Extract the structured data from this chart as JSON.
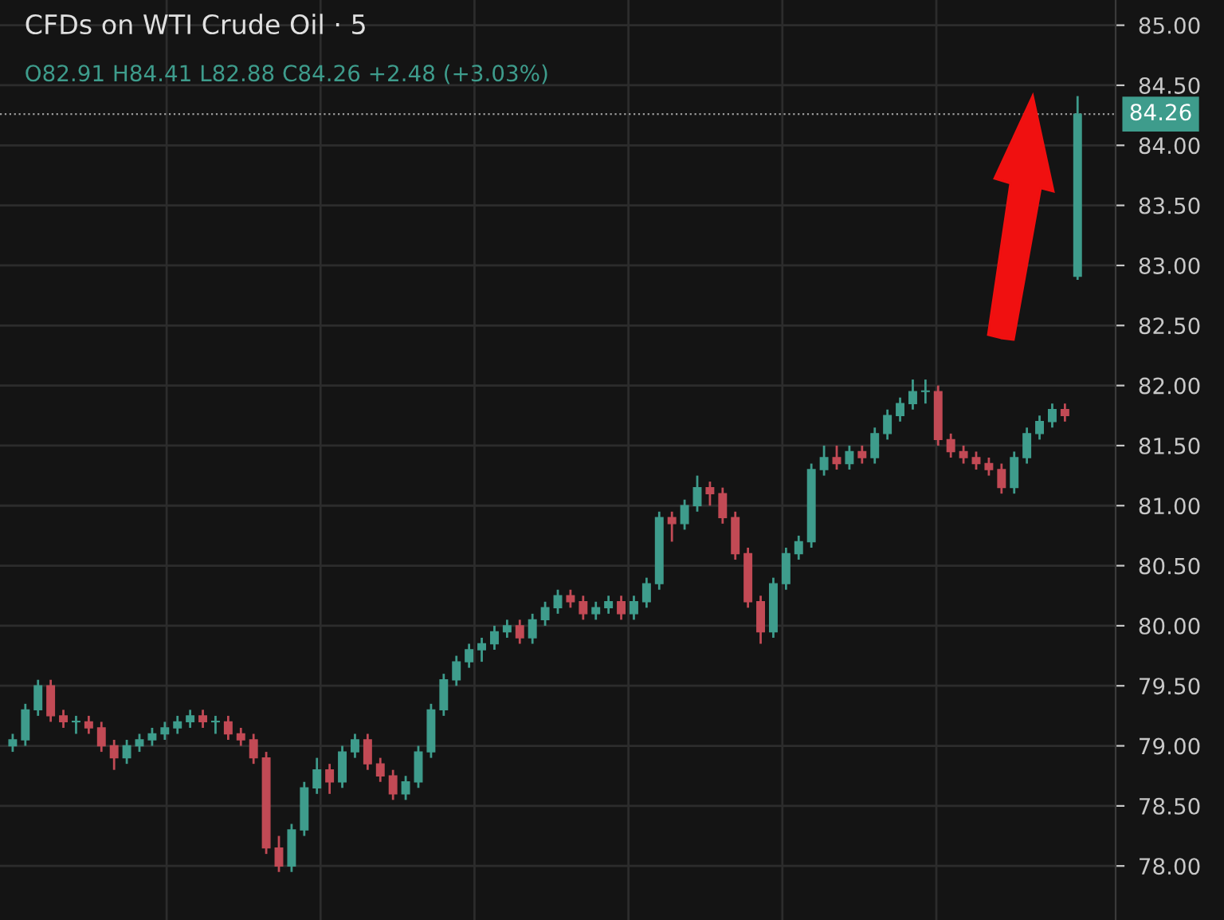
{
  "chart_data": {
    "type": "candlestick",
    "title": "CFDs on WTI Crude Oil · 5",
    "annotations": [
      "O82.91 H84.41 L82.88 C84.26 +2.48 (+3.03%)"
    ],
    "categories": [
      null,
      null,
      null,
      null,
      null,
      null,
      null,
      null,
      null,
      null,
      null,
      null,
      null,
      null,
      null,
      null,
      null,
      null,
      null,
      null,
      null,
      null,
      null,
      null,
      null,
      null,
      null,
      null,
      null,
      null,
      null,
      null,
      null,
      null,
      null,
      null,
      null,
      null,
      null,
      null,
      null,
      null,
      null,
      null,
      null,
      null,
      null,
      null,
      null,
      null,
      null,
      null,
      null,
      null,
      null,
      null,
      null,
      null,
      null,
      null,
      null,
      null,
      null,
      null,
      null,
      null,
      null,
      null,
      null,
      null,
      null,
      null,
      null,
      null,
      null,
      null,
      null,
      null,
      null,
      null,
      null,
      null,
      null,
      null,
      null
    ],
    "ohlc": [
      [
        79.0,
        79.1,
        78.95,
        79.05
      ],
      [
        79.05,
        79.35,
        79.0,
        79.3
      ],
      [
        79.3,
        79.55,
        79.25,
        79.5
      ],
      [
        79.5,
        79.55,
        79.2,
        79.25
      ],
      [
        79.25,
        79.3,
        79.15,
        79.2
      ],
      [
        79.2,
        79.25,
        79.1,
        79.2
      ],
      [
        79.2,
        79.25,
        79.1,
        79.15
      ],
      [
        79.15,
        79.2,
        78.95,
        79.0
      ],
      [
        79.0,
        79.05,
        78.8,
        78.9
      ],
      [
        78.9,
        79.05,
        78.85,
        79.0
      ],
      [
        79.0,
        79.1,
        78.95,
        79.05
      ],
      [
        79.05,
        79.15,
        79.0,
        79.1
      ],
      [
        79.1,
        79.2,
        79.05,
        79.15
      ],
      [
        79.15,
        79.25,
        79.1,
        79.2
      ],
      [
        79.2,
        79.3,
        79.15,
        79.25
      ],
      [
        79.25,
        79.3,
        79.15,
        79.2
      ],
      [
        79.2,
        79.25,
        79.1,
        79.2
      ],
      [
        79.2,
        79.25,
        79.05,
        79.1
      ],
      [
        79.1,
        79.15,
        79.0,
        79.05
      ],
      [
        79.05,
        79.1,
        78.85,
        78.9
      ],
      [
        78.9,
        78.95,
        78.1,
        78.15
      ],
      [
        78.15,
        78.25,
        77.95,
        78.0
      ],
      [
        78.0,
        78.35,
        77.95,
        78.3
      ],
      [
        78.3,
        78.7,
        78.25,
        78.65
      ],
      [
        78.65,
        78.9,
        78.6,
        78.8
      ],
      [
        78.8,
        78.85,
        78.6,
        78.7
      ],
      [
        78.7,
        79.0,
        78.65,
        78.95
      ],
      [
        78.95,
        79.1,
        78.9,
        79.05
      ],
      [
        79.05,
        79.1,
        78.8,
        78.85
      ],
      [
        78.85,
        78.9,
        78.7,
        78.75
      ],
      [
        78.75,
        78.8,
        78.55,
        78.6
      ],
      [
        78.6,
        78.75,
        78.55,
        78.7
      ],
      [
        78.7,
        79.0,
        78.65,
        78.95
      ],
      [
        78.95,
        79.35,
        78.9,
        79.3
      ],
      [
        79.3,
        79.6,
        79.25,
        79.55
      ],
      [
        79.55,
        79.75,
        79.5,
        79.7
      ],
      [
        79.7,
        79.85,
        79.65,
        79.8
      ],
      [
        79.8,
        79.9,
        79.7,
        79.85
      ],
      [
        79.85,
        80.0,
        79.8,
        79.95
      ],
      [
        79.95,
        80.05,
        79.9,
        80.0
      ],
      [
        80.0,
        80.05,
        79.85,
        79.9
      ],
      [
        79.9,
        80.1,
        79.85,
        80.05
      ],
      [
        80.05,
        80.2,
        80.0,
        80.15
      ],
      [
        80.15,
        80.3,
        80.1,
        80.25
      ],
      [
        80.25,
        80.3,
        80.15,
        80.2
      ],
      [
        80.2,
        80.25,
        80.05,
        80.1
      ],
      [
        80.1,
        80.2,
        80.05,
        80.15
      ],
      [
        80.15,
        80.25,
        80.1,
        80.2
      ],
      [
        80.2,
        80.25,
        80.05,
        80.1
      ],
      [
        80.1,
        80.25,
        80.05,
        80.2
      ],
      [
        80.2,
        80.4,
        80.15,
        80.35
      ],
      [
        80.35,
        80.95,
        80.3,
        80.9
      ],
      [
        80.9,
        80.95,
        80.7,
        80.85
      ],
      [
        80.85,
        81.05,
        80.8,
        81.0
      ],
      [
        81.0,
        81.25,
        80.95,
        81.15
      ],
      [
        81.15,
        81.2,
        81.0,
        81.1
      ],
      [
        81.1,
        81.15,
        80.85,
        80.9
      ],
      [
        80.9,
        80.95,
        80.55,
        80.6
      ],
      [
        80.6,
        80.65,
        80.15,
        80.2
      ],
      [
        80.2,
        80.25,
        79.85,
        79.95
      ],
      [
        79.95,
        80.4,
        79.9,
        80.35
      ],
      [
        80.35,
        80.65,
        80.3,
        80.6
      ],
      [
        80.6,
        80.75,
        80.55,
        80.7
      ],
      [
        80.7,
        81.35,
        80.65,
        81.3
      ],
      [
        81.3,
        81.5,
        81.25,
        81.4
      ],
      [
        81.4,
        81.5,
        81.3,
        81.35
      ],
      [
        81.35,
        81.5,
        81.3,
        81.45
      ],
      [
        81.45,
        81.5,
        81.35,
        81.4
      ],
      [
        81.4,
        81.65,
        81.35,
        81.6
      ],
      [
        81.6,
        81.8,
        81.55,
        81.75
      ],
      [
        81.75,
        81.9,
        81.7,
        81.85
      ],
      [
        81.85,
        82.05,
        81.8,
        81.95
      ],
      [
        81.95,
        82.05,
        81.85,
        81.95
      ],
      [
        81.95,
        82.0,
        81.5,
        81.55
      ],
      [
        81.55,
        81.6,
        81.4,
        81.45
      ],
      [
        81.45,
        81.5,
        81.35,
        81.4
      ],
      [
        81.4,
        81.45,
        81.3,
        81.35
      ],
      [
        81.35,
        81.4,
        81.25,
        81.3
      ],
      [
        81.3,
        81.35,
        81.1,
        81.15
      ],
      [
        81.15,
        81.45,
        81.1,
        81.4
      ],
      [
        81.4,
        81.65,
        81.35,
        81.6
      ],
      [
        81.6,
        81.75,
        81.55,
        81.7
      ],
      [
        81.7,
        81.85,
        81.65,
        81.8
      ],
      [
        81.8,
        81.85,
        81.7,
        81.75
      ],
      [
        82.91,
        84.41,
        82.88,
        84.26
      ]
    ],
    "colors": [
      "#3e9c8c",
      "#3e9c8c",
      "#3e9c8c",
      "#c24a55",
      "#c24a55",
      "#3e9c8c",
      "#c24a55",
      "#c24a55",
      "#c24a55",
      "#3e9c8c",
      "#3e9c8c",
      "#3e9c8c",
      "#3e9c8c",
      "#3e9c8c",
      "#3e9c8c",
      "#c24a55",
      "#3e9c8c",
      "#c24a55",
      "#c24a55",
      "#c24a55",
      "#c24a55",
      "#c24a55",
      "#3e9c8c",
      "#3e9c8c",
      "#3e9c8c",
      "#c24a55",
      "#3e9c8c",
      "#3e9c8c",
      "#c24a55",
      "#c24a55",
      "#c24a55",
      "#3e9c8c",
      "#3e9c8c",
      "#3e9c8c",
      "#3e9c8c",
      "#3e9c8c",
      "#3e9c8c",
      "#3e9c8c",
      "#3e9c8c",
      "#3e9c8c",
      "#c24a55",
      "#3e9c8c",
      "#3e9c8c",
      "#3e9c8c",
      "#c24a55",
      "#c24a55",
      "#3e9c8c",
      "#3e9c8c",
      "#c24a55",
      "#3e9c8c",
      "#3e9c8c",
      "#3e9c8c",
      "#c24a55",
      "#3e9c8c",
      "#3e9c8c",
      "#c24a55",
      "#c24a55",
      "#c24a55",
      "#c24a55",
      "#c24a55",
      "#3e9c8c",
      "#3e9c8c",
      "#3e9c8c",
      "#3e9c8c",
      "#3e9c8c",
      "#c24a55",
      "#3e9c8c",
      "#c24a55",
      "#3e9c8c",
      "#3e9c8c",
      "#3e9c8c",
      "#3e9c8c",
      "#3e9c8c",
      "#c24a55",
      "#c24a55",
      "#c24a55",
      "#c24a55",
      "#c24a55",
      "#c24a55",
      "#3e9c8c",
      "#3e9c8c",
      "#3e9c8c",
      "#3e9c8c",
      "#c24a55",
      "#3e9c8c"
    ],
    "ylim": [
      77.55,
      85.21
    ],
    "yticks": [
      {
        "value": 78,
        "label": "78.00"
      },
      {
        "value": 78.5,
        "label": "78.50"
      },
      {
        "value": 79,
        "label": "79.00"
      },
      {
        "value": 79.5,
        "label": "79.50"
      },
      {
        "value": 80,
        "label": "80.00"
      },
      {
        "value": 80.5,
        "label": "80.50"
      },
      {
        "value": 81,
        "label": "81.00"
      },
      {
        "value": 81.5,
        "label": "81.50"
      },
      {
        "value": 82,
        "label": "82.00"
      },
      {
        "value": 82.5,
        "label": "82.50"
      },
      {
        "value": 83,
        "label": "83.00"
      },
      {
        "value": 83.5,
        "label": "83.50"
      },
      {
        "value": 84,
        "label": "84.00"
      },
      {
        "value": 84.5,
        "label": "84.50"
      },
      {
        "value": 85,
        "label": "85.00"
      }
    ],
    "ref_lines": [
      {
        "axis": "y",
        "value": 84.26,
        "label": "84.26",
        "color": "#9a9a9a",
        "line_style": "dotted"
      }
    ],
    "grid": true,
    "tick_labels": "y"
  }
}
